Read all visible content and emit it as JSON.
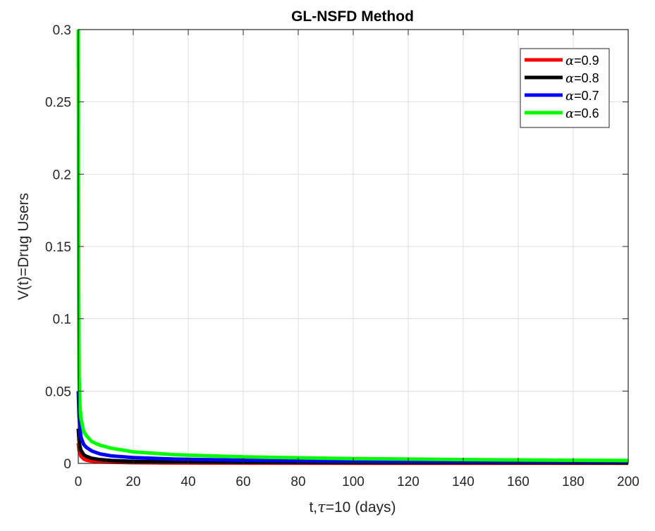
{
  "chart_data": {
    "type": "line",
    "title": "GL-NSFD Method",
    "xlabel_prefix": "t,",
    "xlabel_symbol": "τ",
    "xlabel_suffix": "=10 (days)",
    "ylabel": "V(t)=Drug Users",
    "xlim": [
      0,
      200
    ],
    "ylim": [
      0,
      0.3
    ],
    "xticks": [
      0,
      20,
      40,
      60,
      80,
      100,
      120,
      140,
      160,
      180,
      200
    ],
    "xtick_labels": [
      "0",
      "20",
      "40",
      "60",
      "80",
      "100",
      "120",
      "140",
      "160",
      "180",
      "200"
    ],
    "yticks": [
      0,
      0.05,
      0.1,
      0.15,
      0.2,
      0.25,
      0.3
    ],
    "ytick_labels": [
      "0",
      "0.05",
      "0.1",
      "0.15",
      "0.2",
      "0.25",
      "0.3"
    ],
    "grid": true,
    "legend_position": "top-right",
    "series": [
      {
        "symbol": "α",
        "name": "=0.9",
        "color": "#ff0000",
        "x": [
          0,
          0.3,
          0.6,
          1,
          2,
          3,
          5,
          8,
          12,
          20,
          35,
          60,
          100,
          150,
          200
        ],
        "y": [
          0.014,
          0.009,
          0.007,
          0.005,
          0.003,
          0.0022,
          0.0015,
          0.001,
          0.0008,
          0.0005,
          0.0003,
          0.0002,
          0.00015,
          0.0001,
          0.0001
        ]
      },
      {
        "symbol": "α",
        "name": "=0.8",
        "color": "#000000",
        "x": [
          0,
          0.3,
          0.6,
          1,
          2,
          3,
          5,
          8,
          12,
          20,
          35,
          60,
          100,
          150,
          200
        ],
        "y": [
          0.024,
          0.015,
          0.012,
          0.009,
          0.006,
          0.0048,
          0.0035,
          0.0026,
          0.002,
          0.0014,
          0.001,
          0.0007,
          0.0005,
          0.0004,
          0.0003
        ]
      },
      {
        "symbol": "α",
        "name": "=0.7",
        "color": "#0000ff",
        "x": [
          0,
          0.3,
          0.6,
          1,
          2,
          3,
          5,
          8,
          12,
          20,
          35,
          60,
          100,
          150,
          200
        ],
        "y": [
          0.05,
          0.032,
          0.024,
          0.018,
          0.013,
          0.011,
          0.0085,
          0.0065,
          0.0052,
          0.004,
          0.003,
          0.0022,
          0.0016,
          0.0012,
          0.001
        ]
      },
      {
        "symbol": "α",
        "name": "=0.6",
        "color": "#00ff00",
        "x": [
          0,
          0.15,
          0.3,
          0.6,
          1,
          2,
          3,
          5,
          8,
          12,
          20,
          35,
          60,
          100,
          150,
          200
        ],
        "y": [
          0.3,
          0.12,
          0.06,
          0.04,
          0.031,
          0.022,
          0.019,
          0.015,
          0.0125,
          0.0105,
          0.008,
          0.006,
          0.0045,
          0.0033,
          0.0025,
          0.002
        ]
      }
    ]
  }
}
